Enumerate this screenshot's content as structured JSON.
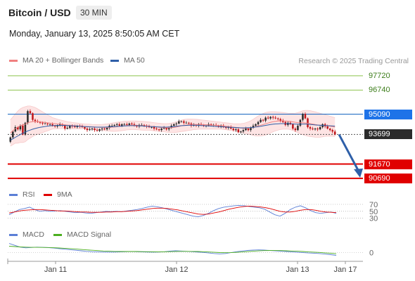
{
  "header": {
    "title": "Bitcoin / USD",
    "timeframe": "30 MIN",
    "datetime": "Monday, January 13, 2025 8:50:05 AM CET"
  },
  "legend": {
    "ma20": "MA 20 + Bollinger Bands",
    "ma50": "MA 50",
    "rsi": "RSI",
    "rsi_ma": "9MA",
    "macd": "MACD",
    "macd_signal": "MACD Signal"
  },
  "credit": "Research © 2025 Trading Central",
  "colors": {
    "ma20": "#f08080",
    "ma50": "#2e5fa8",
    "rsi": "#5b7fd6",
    "rsi_ma": "#e00000",
    "macd": "#5b7fd6",
    "macd_signal": "#4caf20",
    "resistance": "#8bc34a",
    "support": "#e00000",
    "pivot": "#1565c0",
    "candle_up": "#2b2b2b",
    "candle_down": "#c0161b"
  },
  "chart_data": [
    {
      "type": "candlestick",
      "x_ticks": [
        "Jan 11",
        "Jan 12",
        "Jan 13",
        "Jan 17"
      ],
      "ylim": [
        90300,
        98100
      ],
      "levels": [
        {
          "value": 97720,
          "label": "97720",
          "kind": "resistance"
        },
        {
          "value": 96740,
          "label": "96740",
          "kind": "resistance"
        },
        {
          "value": 95090,
          "label": "95090",
          "kind": "pivot"
        },
        {
          "value": 93699,
          "label": "93699",
          "kind": "last"
        },
        {
          "value": 91670,
          "label": "91670",
          "kind": "support"
        },
        {
          "value": 90690,
          "label": "90690",
          "kind": "support"
        }
      ],
      "close": [
        93500,
        93900,
        94200,
        94050,
        94300,
        93700,
        94500,
        95300,
        95150,
        94700,
        94600,
        94550,
        94500,
        94450,
        94450,
        94400,
        94400,
        94300,
        94250,
        94300,
        94400,
        94300,
        94100,
        94150,
        94300,
        94250,
        94200,
        94300,
        94250,
        94200,
        94100,
        94000,
        94050,
        94100,
        94000,
        93950,
        94050,
        94100,
        94050,
        94150,
        94300,
        94300,
        94350,
        94400,
        94300,
        94400,
        94400,
        94350,
        94450,
        94400,
        94300,
        94250,
        94350,
        94350,
        94300,
        94250,
        94200,
        94200,
        94100,
        94050,
        94000,
        94100,
        94150,
        94050,
        94150,
        94300,
        94400,
        94450,
        94600,
        94600,
        94500,
        94500,
        94450,
        94300,
        94350,
        94300,
        94400,
        94350,
        94300,
        94300,
        94400,
        94350,
        94350,
        94300,
        94250,
        94300,
        94200,
        94150,
        94200,
        94100,
        94000,
        94050,
        93850,
        93900,
        94000,
        94100,
        94000,
        94150,
        94300,
        94400,
        94550,
        94700,
        94650,
        94850,
        94800,
        94900,
        94850,
        94800,
        94750,
        94650,
        94550,
        94350,
        94500,
        94400,
        94100,
        94000,
        94300,
        94700,
        95100,
        94800,
        94200,
        94100,
        94050,
        94100,
        94050,
        94200,
        94400,
        94250,
        94100,
        94000,
        93900,
        93699
      ],
      "ma20": [
        93800,
        93950,
        94100,
        94200,
        94300,
        94350,
        94400,
        94500,
        94550,
        94580,
        94600,
        94580,
        94560,
        94540,
        94520,
        94500,
        94480,
        94460,
        94440,
        94420,
        94400,
        94380,
        94360,
        94340,
        94320,
        94300,
        94290,
        94280,
        94270,
        94260,
        94250,
        94240,
        94230,
        94220,
        94210,
        94200,
        94190,
        94180,
        94180,
        94180,
        94190,
        94200,
        94210,
        94230,
        94250,
        94270,
        94290,
        94310,
        94320,
        94330,
        94330,
        94320,
        94310,
        94300,
        94290,
        94280,
        94270,
        94250,
        94230,
        94210,
        94190,
        94170,
        94160,
        94150,
        94150,
        94160,
        94180,
        94210,
        94250,
        94290,
        94320,
        94350,
        94370,
        94380,
        94390,
        94390,
        94390,
        94380,
        94370,
        94360,
        94350,
        94340,
        94330,
        94320,
        94310,
        94300,
        94280,
        94260,
        94240,
        94220,
        94200,
        94180,
        94160,
        94140,
        94130,
        94130,
        94140,
        94160,
        94190,
        94230,
        94280,
        94330,
        94380,
        94430,
        94480,
        94530,
        94570,
        94600,
        94620,
        94630,
        94630,
        94620,
        94610,
        94590,
        94560,
        94530,
        94510,
        94500,
        94500,
        94490,
        94470,
        94440,
        94410,
        94380,
        94350,
        94330,
        94320,
        94310,
        94290,
        94270,
        94240,
        94200
      ],
      "bb_upper": [
        94700,
        94900,
        95100,
        95300,
        95450,
        95550,
        95600,
        95650,
        95650,
        95600,
        95550,
        95450,
        95350,
        95250,
        95150,
        95050,
        94950,
        94850,
        94800,
        94750,
        94700,
        94660,
        94620,
        94580,
        94550,
        94520,
        94500,
        94480,
        94460,
        94440,
        94420,
        94410,
        94400,
        94390,
        94380,
        94380,
        94380,
        94390,
        94400,
        94420,
        94450,
        94480,
        94510,
        94540,
        94560,
        94580,
        94600,
        94610,
        94620,
        94630,
        94630,
        94620,
        94610,
        94600,
        94590,
        94570,
        94550,
        94530,
        94510,
        94490,
        94470,
        94450,
        94440,
        94440,
        94450,
        94480,
        94520,
        94570,
        94630,
        94680,
        94720,
        94750,
        94760,
        94760,
        94750,
        94740,
        94720,
        94700,
        94680,
        94660,
        94640,
        94620,
        94600,
        94580,
        94560,
        94540,
        94520,
        94500,
        94480,
        94460,
        94440,
        94430,
        94430,
        94440,
        94460,
        94500,
        94560,
        94640,
        94740,
        94850,
        94960,
        95060,
        95140,
        95200,
        95240,
        95260,
        95260,
        95250,
        95240,
        95220,
        95200,
        95180,
        95160,
        95150,
        95150,
        95160,
        95200,
        95260,
        95320,
        95350,
        95350,
        95330,
        95290,
        95250,
        95200,
        95150,
        95100,
        95050,
        95000,
        94950,
        94900,
        94850
      ],
      "bb_lower": [
        92900,
        93000,
        93100,
        93100,
        93150,
        93150,
        93200,
        93350,
        93450,
        93560,
        93650,
        93710,
        93770,
        93830,
        93890,
        93950,
        94010,
        94070,
        94080,
        94090,
        94100,
        94100,
        94100,
        94100,
        94090,
        94080,
        94080,
        94080,
        94080,
        94080,
        94080,
        94070,
        94060,
        94050,
        94040,
        94020,
        94000,
        93970,
        93960,
        93940,
        93930,
        93920,
        93910,
        93920,
        93940,
        93960,
        93980,
        94010,
        94020,
        94030,
        94030,
        94020,
        94010,
        94000,
        93990,
        93990,
        93990,
        93970,
        93950,
        93930,
        93910,
        93890,
        93880,
        93860,
        93850,
        93840,
        93840,
        93850,
        93870,
        93900,
        93920,
        93950,
        93980,
        94000,
        94030,
        94040,
        94060,
        94060,
        94060,
        94060,
        94060,
        94060,
        94060,
        94060,
        94060,
        94060,
        94040,
        94020,
        94000,
        93980,
        93960,
        93930,
        93890,
        93840,
        93800,
        93760,
        93720,
        93680,
        93640,
        93610,
        93600,
        93600,
        93620,
        93660,
        93720,
        93800,
        93880,
        93950,
        94000,
        94040,
        94060,
        94060,
        94060,
        94030,
        93970,
        93900,
        93820,
        93740,
        93680,
        93630,
        93590,
        93550,
        93530,
        93510,
        93500,
        93510,
        93540,
        93570,
        93580,
        93590,
        93580,
        93550
      ],
      "ma50": [
        93300,
        93400,
        93500,
        93600,
        93700,
        93780,
        93860,
        93940,
        94000,
        94060,
        94110,
        94150,
        94190,
        94220,
        94250,
        94270,
        94290,
        94300,
        94310,
        94320,
        94320,
        94320,
        94320,
        94310,
        94300,
        94290,
        94280,
        94270,
        94260,
        94250,
        94240,
        94230,
        94220,
        94210,
        94200,
        94200,
        94200,
        94200,
        94200,
        94210,
        94220,
        94230,
        94240,
        94250,
        94260,
        94270,
        94280,
        94290,
        94300,
        94300,
        94300,
        94300,
        94290,
        94280,
        94270,
        94260,
        94250,
        94240,
        94230,
        94220,
        94210,
        94200,
        94200,
        94200,
        94210,
        94220,
        94240,
        94260,
        94280,
        94300,
        94310,
        94320,
        94330,
        94330,
        94330,
        94330,
        94320,
        94310,
        94300,
        94290,
        94280,
        94270,
        94260,
        94250,
        94240,
        94230,
        94220,
        94210,
        94200,
        94190,
        94180,
        94170,
        94160,
        94150,
        94150,
        94150,
        94160,
        94170,
        94190,
        94210,
        94230,
        94260,
        94290,
        94320,
        94350,
        94380,
        94400,
        94420,
        94430,
        94440,
        94440,
        94440,
        94440,
        94430,
        94420,
        94410,
        94400,
        94400,
        94410,
        94410,
        94400,
        94390,
        94370,
        94350,
        94340,
        94330,
        94320,
        94310,
        94300,
        94290,
        94280,
        94270
      ]
    },
    {
      "type": "line",
      "name": "RSI",
      "y_ticks": [
        70,
        50,
        30
      ],
      "ylim": [
        15,
        80
      ],
      "rsi": [
        40,
        48,
        55,
        58,
        62,
        55,
        50,
        52,
        50,
        51,
        52,
        50,
        48,
        46,
        47,
        45,
        44,
        46,
        48,
        50,
        49,
        50,
        49,
        51,
        53,
        55,
        58,
        62,
        65,
        63,
        60,
        56,
        52,
        48,
        44,
        40,
        36,
        34,
        38,
        44,
        52,
        58,
        62,
        64,
        66,
        67,
        66,
        64,
        62,
        60,
        56,
        48,
        40,
        36,
        44,
        55,
        62,
        66,
        60,
        52,
        46,
        44,
        46,
        48,
        44
      ],
      "rsi_ma": [
        45,
        48,
        51,
        53,
        54,
        55,
        55,
        54,
        53,
        52,
        51,
        51,
        50,
        49,
        48,
        48,
        47,
        47,
        47,
        48,
        48,
        49,
        49,
        50,
        51,
        52,
        54,
        56,
        58,
        59,
        59,
        58,
        56,
        54,
        51,
        48,
        45,
        42,
        41,
        42,
        45,
        48,
        52,
        56,
        59,
        62,
        64,
        65,
        64,
        63,
        61,
        58,
        54,
        50,
        48,
        48,
        50,
        53,
        55,
        55,
        53,
        50,
        48,
        47,
        46
      ]
    },
    {
      "type": "line",
      "name": "MACD",
      "y_ticks": [
        0
      ],
      "ylim": [
        -80,
        120
      ],
      "macd": [
        100,
        80,
        60,
        52,
        56,
        60,
        58,
        55,
        50,
        44,
        38,
        32,
        26,
        20,
        14,
        10,
        8,
        6,
        5,
        6,
        8,
        10,
        12,
        10,
        8,
        6,
        5,
        6,
        10,
        16,
        20,
        18,
        14,
        10,
        6,
        2,
        -4,
        -10,
        -14,
        -10,
        0,
        10,
        18,
        24,
        28,
        30,
        28,
        24,
        20,
        16,
        12,
        8,
        4,
        0,
        -4,
        -6,
        -10,
        -16,
        -22,
        -30
      ],
      "signal": [
        70,
        66,
        62,
        60,
        58,
        58,
        57,
        56,
        54,
        51,
        48,
        44,
        40,
        35,
        30,
        26,
        22,
        18,
        15,
        13,
        12,
        12,
        12,
        12,
        11,
        10,
        9,
        8,
        9,
        11,
        13,
        14,
        14,
        13,
        12,
        10,
        7,
        4,
        1,
        -1,
        0,
        3,
        7,
        11,
        15,
        19,
        22,
        23,
        23,
        22,
        20,
        18,
        15,
        12,
        8,
        5,
        2,
        -2,
        -6,
        -12
      ]
    }
  ]
}
